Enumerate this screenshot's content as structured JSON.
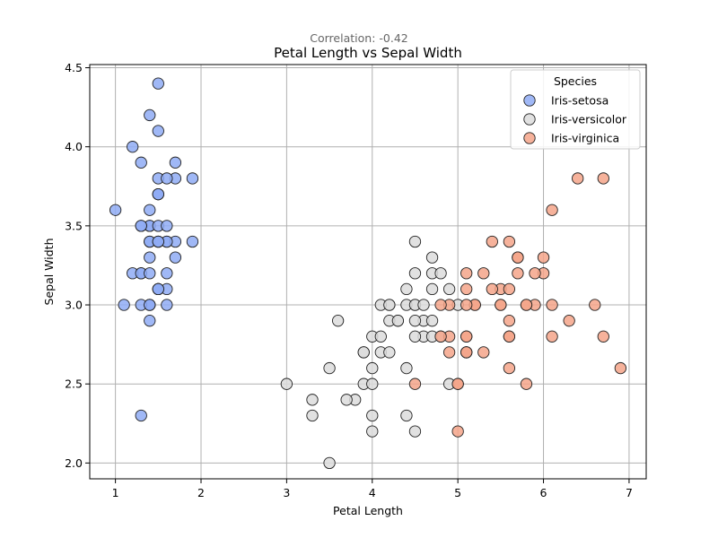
{
  "chart_data": {
    "type": "scatter",
    "title": "Petal Length vs Sepal Width",
    "subtitle": "Correlation: -0.42",
    "xlabel": "Petal Length",
    "ylabel": "Sepal Width",
    "xlim": [
      0.7,
      7.2
    ],
    "ylim": [
      1.9,
      4.52
    ],
    "x_ticks": [
      1,
      2,
      3,
      4,
      5,
      6,
      7
    ],
    "y_ticks": [
      2.0,
      2.5,
      3.0,
      3.5,
      4.0,
      4.5
    ],
    "x_tick_labels": [
      "1",
      "2",
      "3",
      "4",
      "5",
      "6",
      "7"
    ],
    "y_tick_labels": [
      "2.0",
      "2.5",
      "3.0",
      "3.5",
      "4.0",
      "4.5"
    ],
    "grid": true,
    "legend": {
      "title": "Species",
      "position": "top-right"
    },
    "series": [
      {
        "name": "Iris-setosa",
        "color": "#8fabf5",
        "points": [
          [
            1.4,
            3.5
          ],
          [
            1.4,
            3.0
          ],
          [
            1.3,
            3.2
          ],
          [
            1.5,
            3.1
          ],
          [
            1.4,
            3.6
          ],
          [
            1.7,
            3.9
          ],
          [
            1.4,
            3.4
          ],
          [
            1.5,
            3.4
          ],
          [
            1.4,
            2.9
          ],
          [
            1.5,
            3.1
          ],
          [
            1.5,
            3.7
          ],
          [
            1.6,
            3.4
          ],
          [
            1.4,
            3.0
          ],
          [
            1.1,
            3.0
          ],
          [
            1.2,
            4.0
          ],
          [
            1.5,
            4.4
          ],
          [
            1.3,
            3.9
          ],
          [
            1.4,
            3.5
          ],
          [
            1.7,
            3.8
          ],
          [
            1.5,
            3.8
          ],
          [
            1.7,
            3.4
          ],
          [
            1.5,
            3.7
          ],
          [
            1.0,
            3.6
          ],
          [
            1.7,
            3.3
          ],
          [
            1.9,
            3.4
          ],
          [
            1.6,
            3.0
          ],
          [
            1.6,
            3.4
          ],
          [
            1.5,
            3.5
          ],
          [
            1.4,
            3.4
          ],
          [
            1.6,
            3.2
          ],
          [
            1.6,
            3.1
          ],
          [
            1.5,
            3.4
          ],
          [
            1.5,
            4.1
          ],
          [
            1.4,
            4.2
          ],
          [
            1.5,
            3.1
          ],
          [
            1.2,
            3.2
          ],
          [
            1.3,
            3.5
          ],
          [
            1.5,
            3.1
          ],
          [
            1.3,
            3.0
          ],
          [
            1.5,
            3.4
          ],
          [
            1.3,
            3.5
          ],
          [
            1.3,
            2.3
          ],
          [
            1.3,
            3.2
          ],
          [
            1.6,
            3.5
          ],
          [
            1.9,
            3.8
          ],
          [
            1.4,
            3.0
          ],
          [
            1.6,
            3.8
          ],
          [
            1.4,
            3.2
          ],
          [
            1.5,
            3.7
          ],
          [
            1.4,
            3.3
          ]
        ]
      },
      {
        "name": "Iris-versicolor",
        "color": "#dcdcdc",
        "points": [
          [
            4.7,
            3.2
          ],
          [
            4.5,
            3.2
          ],
          [
            4.9,
            3.1
          ],
          [
            4.0,
            2.3
          ],
          [
            4.6,
            2.8
          ],
          [
            4.5,
            2.8
          ],
          [
            4.7,
            3.3
          ],
          [
            3.3,
            2.4
          ],
          [
            4.6,
            2.9
          ],
          [
            3.9,
            2.7
          ],
          [
            3.5,
            2.0
          ],
          [
            4.2,
            3.0
          ],
          [
            4.0,
            2.2
          ],
          [
            4.7,
            2.9
          ],
          [
            3.6,
            2.9
          ],
          [
            4.4,
            3.1
          ],
          [
            4.5,
            3.0
          ],
          [
            4.1,
            2.7
          ],
          [
            4.5,
            2.2
          ],
          [
            3.9,
            2.5
          ],
          [
            4.8,
            3.2
          ],
          [
            4.0,
            2.8
          ],
          [
            4.9,
            2.5
          ],
          [
            4.7,
            2.8
          ],
          [
            4.3,
            2.9
          ],
          [
            4.4,
            3.0
          ],
          [
            4.8,
            2.8
          ],
          [
            5.0,
            3.0
          ],
          [
            4.5,
            2.9
          ],
          [
            3.5,
            2.6
          ],
          [
            3.8,
            2.4
          ],
          [
            3.7,
            2.4
          ],
          [
            3.9,
            2.7
          ],
          [
            5.1,
            2.7
          ],
          [
            4.5,
            3.0
          ],
          [
            4.5,
            3.4
          ],
          [
            4.7,
            3.1
          ],
          [
            4.4,
            2.3
          ],
          [
            4.1,
            3.0
          ],
          [
            4.0,
            2.5
          ],
          [
            4.4,
            2.6
          ],
          [
            4.6,
            3.0
          ],
          [
            4.0,
            2.6
          ],
          [
            3.3,
            2.3
          ],
          [
            4.2,
            2.7
          ],
          [
            4.2,
            3.0
          ],
          [
            4.2,
            2.9
          ],
          [
            4.3,
            2.9
          ],
          [
            3.0,
            2.5
          ],
          [
            4.1,
            2.8
          ]
        ]
      },
      {
        "name": "Iris-virginica",
        "color": "#f4a58a",
        "points": [
          [
            6.0,
            3.3
          ],
          [
            5.1,
            2.7
          ],
          [
            5.9,
            3.0
          ],
          [
            5.6,
            2.9
          ],
          [
            5.8,
            3.0
          ],
          [
            6.6,
            3.0
          ],
          [
            4.5,
            2.5
          ],
          [
            6.3,
            2.9
          ],
          [
            5.8,
            2.5
          ],
          [
            6.1,
            3.6
          ],
          [
            5.1,
            3.2
          ],
          [
            5.3,
            2.7
          ],
          [
            5.5,
            3.0
          ],
          [
            5.0,
            2.5
          ],
          [
            5.1,
            2.8
          ],
          [
            5.3,
            3.2
          ],
          [
            5.5,
            3.0
          ],
          [
            6.7,
            3.8
          ],
          [
            6.9,
            2.6
          ],
          [
            5.0,
            2.2
          ],
          [
            5.7,
            3.2
          ],
          [
            4.9,
            2.8
          ],
          [
            6.7,
            2.8
          ],
          [
            4.9,
            2.7
          ],
          [
            5.7,
            3.3
          ],
          [
            6.0,
            3.2
          ],
          [
            4.8,
            2.8
          ],
          [
            4.9,
            3.0
          ],
          [
            5.6,
            2.8
          ],
          [
            5.8,
            3.0
          ],
          [
            6.1,
            2.8
          ],
          [
            6.4,
            3.8
          ],
          [
            5.6,
            2.8
          ],
          [
            5.1,
            2.8
          ],
          [
            5.6,
            2.6
          ],
          [
            6.1,
            3.0
          ],
          [
            5.6,
            3.4
          ],
          [
            5.5,
            3.1
          ],
          [
            4.8,
            3.0
          ],
          [
            5.4,
            3.1
          ],
          [
            5.6,
            3.1
          ],
          [
            5.1,
            3.1
          ],
          [
            5.1,
            2.7
          ],
          [
            5.9,
            3.2
          ],
          [
            5.7,
            3.3
          ],
          [
            5.2,
            3.0
          ],
          [
            5.0,
            2.5
          ],
          [
            5.2,
            3.0
          ],
          [
            5.4,
            3.4
          ],
          [
            5.1,
            3.0
          ]
        ]
      }
    ]
  }
}
